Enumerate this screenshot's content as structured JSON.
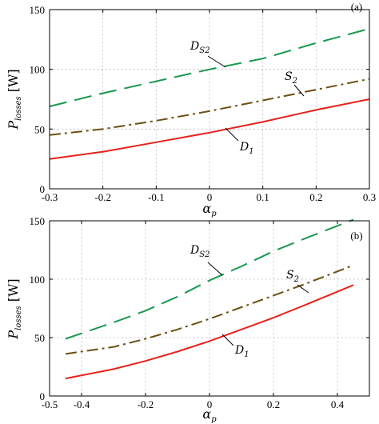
{
  "chart_data": [
    {
      "type": "line",
      "panel_label": "(a)",
      "xlabel": "α",
      "xlabel_sub": "p",
      "ylabel": "P",
      "ylabel_sub": "losses",
      "ylabel_unit": "[W]",
      "xlim": [
        -0.3,
        0.3
      ],
      "ylim": [
        0,
        150
      ],
      "xticks": [
        -0.3,
        -0.2,
        -0.1,
        0,
        0.1,
        0.2,
        0.3
      ],
      "xtick_labels": [
        "-0.3",
        "-0.2",
        "-0.1",
        "0",
        "0.1",
        "0.2",
        "0.3"
      ],
      "yticks": [
        0,
        50,
        100,
        150
      ],
      "ytick_labels": [
        "0",
        "50",
        "100",
        "150"
      ],
      "grid": true,
      "series": [
        {
          "name": "D",
          "name_sub": "S2",
          "color": "#1a9850",
          "style": "dashed",
          "x": [
            -0.3,
            -0.2,
            -0.1,
            0,
            0.1,
            0.2,
            0.3
          ],
          "y": [
            69,
            80,
            90,
            100,
            109,
            122,
            134
          ]
        },
        {
          "name": "S",
          "name_sub": "2",
          "color": "#6b4f12",
          "style": "dashdot",
          "x": [
            -0.3,
            -0.2,
            -0.1,
            0,
            0.1,
            0.2,
            0.3
          ],
          "y": [
            45,
            50,
            57,
            65,
            74,
            83,
            92
          ]
        },
        {
          "name": "D",
          "name_sub": "1",
          "color": "#e8211b",
          "style": "solid",
          "x": [
            -0.3,
            -0.2,
            -0.1,
            0,
            0.1,
            0.2,
            0.3
          ],
          "y": [
            25,
            31,
            39,
            47,
            56,
            66,
            75
          ]
        }
      ]
    },
    {
      "type": "line",
      "panel_label": "(b)",
      "xlabel": "α",
      "xlabel_sub": "p",
      "ylabel": "P",
      "ylabel_sub": "losses",
      "ylabel_unit": "[W]",
      "xlim": [
        -0.5,
        0.5
      ],
      "ylim": [
        0,
        150
      ],
      "xticks": [
        -0.5,
        -0.4,
        -0.2,
        0,
        0.2,
        0.4
      ],
      "xtick_labels": [
        "-0.5",
        "-0.4",
        "-0.2",
        "0",
        "0.2",
        "0.4"
      ],
      "yticks": [
        0,
        50,
        100,
        150
      ],
      "ytick_labels": [
        "0",
        "50",
        "100",
        "150"
      ],
      "grid": true,
      "series": [
        {
          "name": "D",
          "name_sub": "S2",
          "color": "#1a9850",
          "style": "dashed",
          "x": [
            -0.45,
            -0.3,
            -0.2,
            -0.1,
            0,
            0.1,
            0.2,
            0.3,
            0.45
          ],
          "y": [
            49,
            63,
            73,
            85,
            99,
            111,
            124,
            135,
            151
          ]
        },
        {
          "name": "S",
          "name_sub": "2",
          "color": "#6b4f12",
          "style": "dashdot",
          "x": [
            -0.45,
            -0.3,
            -0.2,
            -0.1,
            0,
            0.1,
            0.2,
            0.3,
            0.45
          ],
          "y": [
            36,
            42,
            49,
            57,
            66,
            76,
            86,
            96,
            112
          ]
        },
        {
          "name": "D",
          "name_sub": "1",
          "color": "#e8211b",
          "style": "solid",
          "x": [
            -0.45,
            -0.3,
            -0.2,
            -0.1,
            0,
            0.1,
            0.2,
            0.3,
            0.45
          ],
          "y": [
            15,
            23,
            30,
            38,
            47,
            57,
            67,
            78,
            95
          ]
        }
      ]
    }
  ]
}
